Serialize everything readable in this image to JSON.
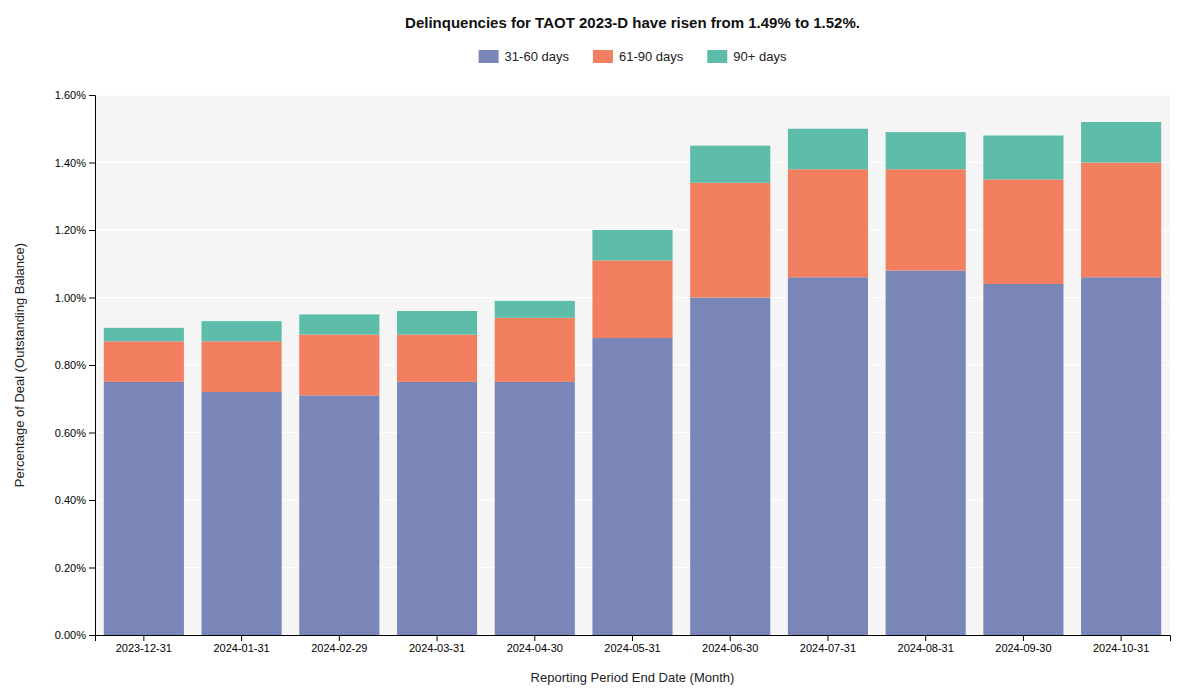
{
  "chart_data": {
    "type": "bar",
    "title": "Delinquencies for TAOT 2023-D have risen from 1.49% to 1.52%.",
    "x_label": "Reporting Period End Date (Month)",
    "y_label": "Percentage of Deal (Outstanding Balance)",
    "categories": [
      "2023-12-31",
      "2024-01-31",
      "2024-02-29",
      "2024-03-31",
      "2024-04-30",
      "2024-05-31",
      "2024-06-30",
      "2024-07-31",
      "2024-08-31",
      "2024-09-30",
      "2024-10-31"
    ],
    "series": [
      {
        "name": "31-60 days",
        "color": "#7b86b8",
        "values": [
          0.0075,
          0.0072,
          0.0071,
          0.0075,
          0.0075,
          0.0088,
          0.01,
          0.0106,
          0.0108,
          0.0104,
          0.0106
        ]
      },
      {
        "name": "61-90 days",
        "color": "#f28060",
        "values": [
          0.0012,
          0.0015,
          0.0018,
          0.0014,
          0.0019,
          0.0023,
          0.0034,
          0.0032,
          0.003,
          0.0031,
          0.0034
        ]
      },
      {
        "name": "90+ days",
        "color": "#5dbdaa",
        "values": [
          0.0004,
          0.0006,
          0.0006,
          0.0007,
          0.0005,
          0.0009,
          0.0011,
          0.0012,
          0.0011,
          0.0013,
          0.0012
        ]
      }
    ],
    "stacked": true,
    "ylim": [
      0,
      0.016
    ],
    "yticks": [
      {
        "value": 0,
        "label": "0.00%"
      },
      {
        "value": 0.002,
        "label": "0.20%"
      },
      {
        "value": 0.004,
        "label": "0.40%"
      },
      {
        "value": 0.006,
        "label": "0.60%"
      },
      {
        "value": 0.008,
        "label": "0.80%"
      },
      {
        "value": 0.01,
        "label": "1.00%"
      },
      {
        "value": 0.012,
        "label": "1.20%"
      },
      {
        "value": 0.014,
        "label": "1.40%"
      },
      {
        "value": 0.016,
        "label": "1.60%"
      }
    ],
    "grid": true,
    "legend": "top"
  }
}
